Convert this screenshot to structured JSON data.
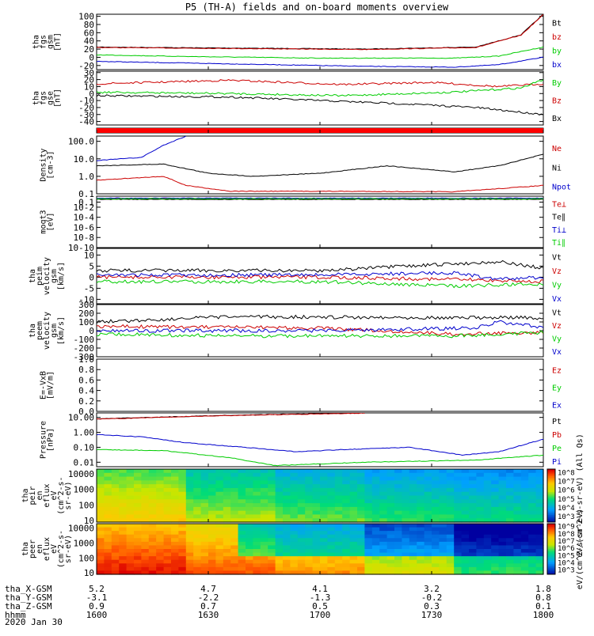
{
  "title": "P5 (TH-A) fields and on-board moments overview",
  "colors": {
    "black": "#000000",
    "red": "#cc0000",
    "green": "#00cc00",
    "blue": "#0000cc"
  },
  "chart_data": [
    {
      "type": "line",
      "id": "fgs_gsm",
      "ylabel_lines": [
        "tha",
        "fgs",
        "gsm",
        "[nT]"
      ],
      "ylim": [
        -30,
        105
      ],
      "ticks": [
        100,
        80,
        60,
        40,
        20,
        0,
        -20
      ],
      "tick_labels": [
        "100",
        "80",
        "60",
        "40",
        "20",
        "0",
        "-20"
      ],
      "legend": [
        "Bt",
        "bz",
        "by",
        "bx"
      ],
      "legend_colors": [
        "black",
        "red",
        "green",
        "blue"
      ],
      "series": [
        {
          "name": "Bt",
          "color": "black",
          "values": [
            [
              0,
              25
            ],
            [
              0.6,
              20
            ],
            [
              0.85,
              25
            ],
            [
              0.95,
              55
            ],
            [
              1,
              105
            ]
          ]
        },
        {
          "name": "bz",
          "color": "red",
          "values": [
            [
              0,
              24
            ],
            [
              0.6,
              19
            ],
            [
              0.85,
              24
            ],
            [
              0.95,
              54
            ],
            [
              1,
              104
            ]
          ]
        },
        {
          "name": "by",
          "color": "green",
          "values": [
            [
              0,
              6
            ],
            [
              0.2,
              2
            ],
            [
              0.5,
              -2
            ],
            [
              0.8,
              -2
            ],
            [
              0.9,
              3
            ],
            [
              1,
              25
            ]
          ]
        },
        {
          "name": "bx",
          "color": "blue",
          "values": [
            [
              0,
              -10
            ],
            [
              0.3,
              -16
            ],
            [
              0.6,
              -22
            ],
            [
              0.8,
              -24
            ],
            [
              0.9,
              -18
            ],
            [
              1,
              0
            ]
          ]
        }
      ]
    },
    {
      "type": "line",
      "id": "fgs_gse",
      "ylabel_lines": [
        "tha",
        "fgs",
        "gse",
        "[nT]"
      ],
      "ylim": [
        -45,
        32
      ],
      "ticks": [
        30,
        20,
        10,
        0,
        -10,
        -20,
        -30,
        -40
      ],
      "tick_labels": [
        "30",
        "20",
        "10",
        "0",
        "-10",
        "-20",
        "-30",
        "-40"
      ],
      "legend": [
        "By",
        "Bz",
        "Bx"
      ],
      "legend_colors": [
        "green",
        "red",
        "black"
      ],
      "series": [
        {
          "name": "Bz",
          "color": "red",
          "values": [
            [
              0,
              14
            ],
            [
              0.3,
              19
            ],
            [
              0.55,
              13
            ],
            [
              0.75,
              16
            ],
            [
              0.9,
              10
            ],
            [
              1,
              14
            ]
          ]
        },
        {
          "name": "By",
          "color": "green",
          "values": [
            [
              0,
              2
            ],
            [
              0.3,
              0
            ],
            [
              0.55,
              -3
            ],
            [
              0.8,
              2
            ],
            [
              0.95,
              8
            ],
            [
              1,
              20
            ]
          ]
        },
        {
          "name": "Bx",
          "color": "black",
          "values": [
            [
              0,
              -3
            ],
            [
              0.3,
              -5
            ],
            [
              0.5,
              -10
            ],
            [
              0.7,
              -15
            ],
            [
              0.85,
              -20
            ],
            [
              1,
              -30
            ]
          ]
        }
      ]
    },
    {
      "type": "line",
      "id": "density",
      "ylabel_lines": [
        "Density",
        "[cm-3]"
      ],
      "ylim": [
        0.1,
        200
      ],
      "log": true,
      "ticks": [
        100,
        10,
        1,
        0.1
      ],
      "tick_labels": [
        "100.0",
        "10.0",
        "1.0",
        "0.1"
      ],
      "legend": [
        "Ne",
        "Ni",
        "Npot"
      ],
      "legend_colors": [
        "red",
        "black",
        "blue"
      ],
      "series": [
        {
          "name": "Npot",
          "color": "blue",
          "values": [
            [
              0,
              8
            ],
            [
              0.1,
              12
            ],
            [
              0.15,
              60
            ],
            [
              0.2,
              200
            ]
          ]
        },
        {
          "name": "Ni",
          "color": "black",
          "values": [
            [
              0,
              4
            ],
            [
              0.15,
              5
            ],
            [
              0.25,
              1.5
            ],
            [
              0.35,
              1.0
            ],
            [
              0.5,
              1.5
            ],
            [
              0.65,
              4
            ],
            [
              0.8,
              1.8
            ],
            [
              0.9,
              4
            ],
            [
              1,
              18
            ]
          ]
        },
        {
          "name": "Ne",
          "color": "red",
          "values": [
            [
              0,
              0.6
            ],
            [
              0.15,
              1.0
            ],
            [
              0.2,
              0.3
            ],
            [
              0.3,
              0.14
            ],
            [
              0.5,
              0.14
            ],
            [
              0.8,
              0.13
            ],
            [
              1,
              0.3
            ]
          ]
        }
      ]
    },
    {
      "type": "line",
      "id": "temp",
      "ylabel_lines": [
        "moqt3",
        "[eV]"
      ],
      "ylim": [
        1e-10,
        1.5
      ],
      "log": true,
      "ticks": [
        0.1,
        0.01,
        0.0001,
        1e-06,
        1e-08,
        1e-10
      ],
      "tick_labels": [
        "0.1",
        "10-2",
        "10-4",
        "10-6",
        "10-8",
        "10-10"
      ],
      "legend": [
        "Te⊥",
        "Te∥",
        "Ti⊥",
        "Ti∥"
      ],
      "legend_colors": [
        "red",
        "black",
        "blue",
        "green"
      ],
      "series": [
        {
          "name": "Te⊥",
          "color": "red",
          "values": [
            [
              0,
              0.5
            ],
            [
              1,
              0.5
            ]
          ]
        },
        {
          "name": "Te∥",
          "color": "black",
          "values": [
            [
              0,
              0.35
            ],
            [
              1,
              0.35
            ]
          ]
        },
        {
          "name": "Ti⊥",
          "color": "blue",
          "values": [
            [
              0,
              0.6
            ],
            [
              1,
              0.6
            ]
          ]
        },
        {
          "name": "Ti∥",
          "color": "green",
          "values": [
            [
              0,
              0.45
            ],
            [
              1,
              0.45
            ]
          ]
        }
      ]
    },
    {
      "type": "line",
      "id": "peim_velocity",
      "ylabel_lines": [
        "tha",
        "peim",
        "velocity",
        "gsm",
        "[km/s]"
      ],
      "ylim": [
        -12,
        13
      ],
      "ticks": [
        10,
        5,
        0,
        -5,
        -10
      ],
      "tick_labels": [
        "10",
        "5",
        "0",
        "-5",
        "-10"
      ],
      "legend": [
        "Vt",
        "Vz",
        "Vy",
        "Vx"
      ],
      "legend_colors": [
        "black",
        "red",
        "green",
        "blue"
      ],
      "series": [
        {
          "name": "Vt",
          "color": "black",
          "values": [
            [
              0,
              3
            ],
            [
              0.5,
              3
            ],
            [
              0.8,
              6
            ],
            [
              0.9,
              7
            ],
            [
              1,
              4
            ]
          ]
        },
        {
          "name": "Vz",
          "color": "red",
          "values": [
            [
              0,
              0
            ],
            [
              0.5,
              0
            ],
            [
              0.8,
              -1
            ],
            [
              1,
              -2
            ]
          ]
        },
        {
          "name": "Vy",
          "color": "green",
          "values": [
            [
              0,
              -2
            ],
            [
              0.5,
              -2
            ],
            [
              0.8,
              -4
            ],
            [
              1,
              -3
            ]
          ]
        },
        {
          "name": "Vx",
          "color": "blue",
          "values": [
            [
              0,
              1
            ],
            [
              0.5,
              1
            ],
            [
              0.8,
              2
            ],
            [
              0.9,
              -1
            ],
            [
              1,
              0
            ]
          ]
        }
      ]
    },
    {
      "type": "line",
      "id": "peem_velocity",
      "ylabel_lines": [
        "tha",
        "peem",
        "velocity",
        "gsm",
        "[km/s]"
      ],
      "ylim": [
        -300,
        300
      ],
      "ticks": [
        300,
        200,
        100,
        0,
        -100,
        -200,
        -300
      ],
      "tick_labels": [
        "300",
        "200",
        "100",
        "0",
        "-100",
        "-200",
        "-300"
      ],
      "legend": [
        "Vt",
        "Vz",
        "Vy",
        "Vx"
      ],
      "legend_colors": [
        "black",
        "red",
        "green",
        "blue"
      ],
      "series": [
        {
          "name": "Vt",
          "color": "black",
          "values": [
            [
              0,
              100
            ],
            [
              0.3,
              160
            ],
            [
              0.8,
              150
            ],
            [
              0.95,
              150
            ],
            [
              1,
              130
            ]
          ]
        },
        {
          "name": "Vz",
          "color": "red",
          "values": [
            [
              0,
              50
            ],
            [
              0.5,
              30
            ],
            [
              0.8,
              -40
            ],
            [
              1,
              -20
            ]
          ]
        },
        {
          "name": "Vy",
          "color": "green",
          "values": [
            [
              0,
              -40
            ],
            [
              0.3,
              -60
            ],
            [
              0.5,
              -60
            ],
            [
              0.8,
              -60
            ],
            [
              1,
              -20
            ]
          ]
        },
        {
          "name": "Vx",
          "color": "blue",
          "values": [
            [
              0,
              0
            ],
            [
              0.5,
              0
            ],
            [
              0.85,
              30
            ],
            [
              0.9,
              100
            ],
            [
              1,
              40
            ]
          ]
        }
      ]
    },
    {
      "type": "line",
      "id": "efield",
      "ylabel_lines": [
        "E=-VxB",
        "[mV/m]"
      ],
      "ylim": [
        0,
        1
      ],
      "ticks": [
        1.0,
        0.8,
        0.6,
        0.4,
        0.2,
        0.0
      ],
      "tick_labels": [
        "1.0",
        "0.8",
        "0.6",
        "0.4",
        "0.2",
        "0.0"
      ],
      "legend": [
        "Ez",
        "Ey",
        "Ex"
      ],
      "legend_colors": [
        "red",
        "green",
        "blue"
      ],
      "series": []
    },
    {
      "type": "line",
      "id": "pressure",
      "ylabel_lines": [
        "Pressure",
        "[nPa]"
      ],
      "ylim": [
        0.005,
        20
      ],
      "log": true,
      "ticks": [
        10,
        1,
        0.1,
        0.01
      ],
      "tick_labels": [
        "10.00",
        "1.00",
        "0.10",
        "0.01"
      ],
      "legend": [
        "Pt",
        "Pb",
        "Pe",
        "Pi"
      ],
      "legend_colors": [
        "black",
        "red",
        "green",
        "blue"
      ],
      "series": [
        {
          "name": "Pt",
          "color": "black",
          "values": [
            [
              0,
              8
            ],
            [
              0.3,
              14
            ],
            [
              0.6,
              20
            ]
          ]
        },
        {
          "name": "Pb",
          "color": "red",
          "values": [
            [
              0,
              7.8
            ],
            [
              0.3,
              13.5
            ],
            [
              0.6,
              19.5
            ]
          ]
        },
        {
          "name": "Pi",
          "color": "blue",
          "values": [
            [
              0,
              0.7
            ],
            [
              0.1,
              0.5
            ],
            [
              0.2,
              0.2
            ],
            [
              0.35,
              0.09
            ],
            [
              0.45,
              0.05
            ],
            [
              0.55,
              0.07
            ],
            [
              0.7,
              0.1
            ],
            [
              0.82,
              0.03
            ],
            [
              0.9,
              0.05
            ],
            [
              1,
              0.35
            ]
          ]
        },
        {
          "name": "Pe",
          "color": "green",
          "values": [
            [
              0,
              0.07
            ],
            [
              0.15,
              0.06
            ],
            [
              0.3,
              0.02
            ],
            [
              0.4,
              0.006
            ],
            [
              0.6,
              0.01
            ],
            [
              0.85,
              0.014
            ],
            [
              1,
              0.03
            ]
          ]
        }
      ]
    },
    {
      "type": "heatmap",
      "id": "peir_eflux",
      "ylabel_lines": [
        "tha",
        "peir",
        "en",
        "eflux",
        "eV",
        "(cm^2-s-",
        "sr-eV)"
      ],
      "ylim": [
        8,
        20000
      ],
      "log": true,
      "ticks": [
        10000,
        1000,
        100,
        10
      ],
      "tick_labels": [
        "10000",
        "1000",
        "100",
        "10"
      ],
      "cbar_ticks": [
        "10^8",
        "10^7",
        "10^6",
        "10^5",
        "10^4",
        "10^3"
      ],
      "cbar_label": "eV/(cm^2-s-sr-eV) (All Qs)",
      "color_values": [
        6.0,
        5.2,
        4.8,
        4.5,
        4.3
      ]
    },
    {
      "type": "heatmap",
      "id": "peer_eflux",
      "ylabel_lines": [
        "tha",
        "peer",
        "en",
        "eflux",
        "eV",
        "(cm^2-s-",
        "sr-eV)"
      ],
      "ylim": [
        8,
        20000
      ],
      "log": true,
      "ticks": [
        10000,
        1000,
        100,
        10
      ],
      "tick_labels": [
        "10000",
        "1000",
        "100",
        "10"
      ],
      "cbar_ticks": [
        "10^9",
        "10^8",
        "10^7",
        "10^6",
        "10^5",
        "10^4",
        "10^3"
      ],
      "cbar_label": "eV/(cm^2-s-sr-eV)",
      "color_values": [
        7.5,
        7.0,
        6.5,
        5.5,
        4.5
      ]
    }
  ],
  "x_axis": {
    "rows": [
      {
        "label": "tha_X-GSM",
        "values": [
          "5.2",
          "4.7",
          "4.1",
          "3.2",
          "1.8"
        ]
      },
      {
        "label": "tha_Y-GSM",
        "values": [
          "-3.1",
          "-2.2",
          "-1.3",
          "-0.2",
          "0.8"
        ]
      },
      {
        "label": "tha_Z-GSM",
        "values": [
          "0.9",
          "0.7",
          "0.5",
          "0.3",
          "0.1"
        ]
      },
      {
        "label": "hhmm",
        "values": [
          "1600",
          "1630",
          "1700",
          "1730",
          "1800"
        ]
      }
    ],
    "date": "2020 Jan 30",
    "times": [
      1600,
      1630,
      1700,
      1730,
      1800
    ]
  }
}
